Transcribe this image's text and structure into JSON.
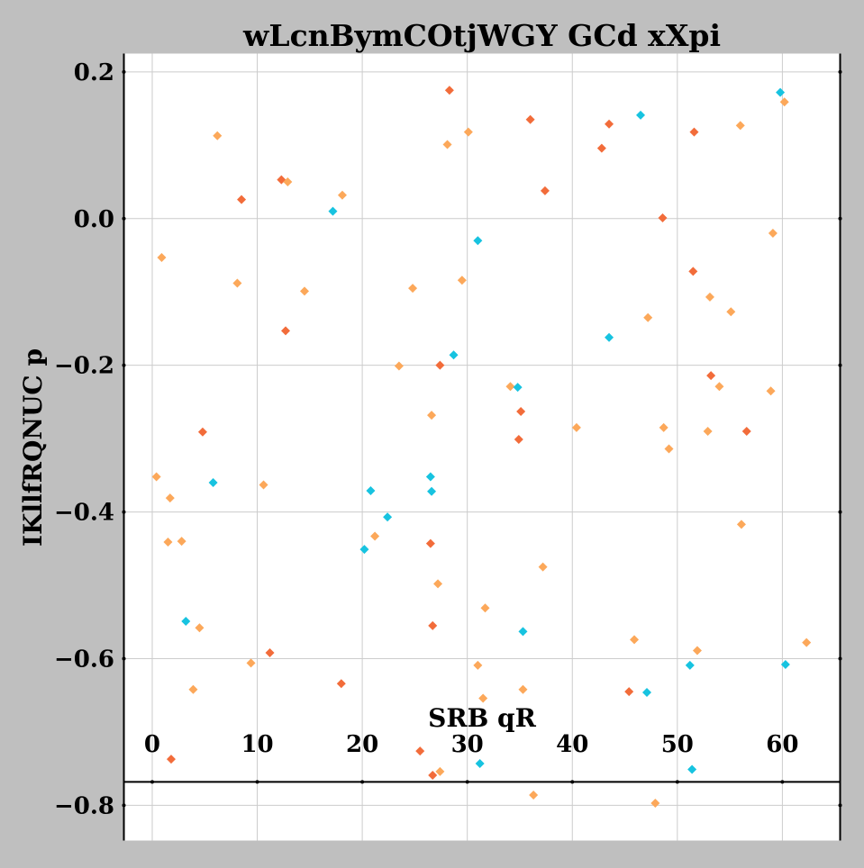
{
  "chart_data": {
    "type": "scatter",
    "title": "wLcnBymCOtjWGY GCd xXpi",
    "xlabel": "SRB qR",
    "ylabel": "IKllfRQNUC p",
    "xlim": [
      -2.7,
      65.5
    ],
    "ylim": [
      -0.848,
      0.225
    ],
    "x_ticks": [
      0,
      10,
      20,
      30,
      40,
      50,
      60
    ],
    "y_ticks": [
      0.2,
      0.0,
      -0.2,
      -0.4,
      -0.6,
      -0.8
    ],
    "x_tick_labels": [
      "0",
      "10",
      "20",
      "30",
      "40",
      "50",
      "60"
    ],
    "y_tick_labels": [
      "0.2",
      "0.0",
      "−0.2",
      "−0.4",
      "−0.6",
      "−0.8"
    ],
    "x_axis_position_y": -0.768,
    "grid": true,
    "legend": "none",
    "marker": "diamond",
    "series": [
      {
        "color": "#f26c3a",
        "points": [
          [
            1.8,
            -0.737
          ],
          [
            4.8,
            -0.291
          ],
          [
            8.5,
            0.026
          ],
          [
            11.2,
            -0.592
          ],
          [
            12.3,
            0.053
          ],
          [
            12.7,
            -0.153
          ],
          [
            18.0,
            -0.634
          ],
          [
            25.5,
            -0.726
          ],
          [
            26.5,
            -0.443
          ],
          [
            26.7,
            -0.555
          ],
          [
            26.7,
            -0.759
          ],
          [
            27.4,
            -0.2
          ],
          [
            28.3,
            0.175
          ],
          [
            34.9,
            -0.301
          ],
          [
            35.1,
            -0.263
          ],
          [
            36.0,
            0.135
          ],
          [
            37.4,
            0.038
          ],
          [
            42.8,
            0.096
          ],
          [
            43.5,
            0.129
          ],
          [
            45.4,
            -0.645
          ],
          [
            48.6,
            0.001
          ],
          [
            51.5,
            -0.072
          ],
          [
            51.6,
            0.118
          ],
          [
            53.2,
            -0.214
          ],
          [
            56.6,
            -0.29
          ]
        ]
      },
      {
        "color": "#fca85a",
        "points": [
          [
            0.4,
            -0.352
          ],
          [
            0.9,
            -0.053
          ],
          [
            1.5,
            -0.441
          ],
          [
            1.7,
            -0.381
          ],
          [
            2.8,
            -0.44
          ],
          [
            3.9,
            -0.642
          ],
          [
            4.5,
            -0.558
          ],
          [
            6.2,
            0.113
          ],
          [
            8.1,
            -0.088
          ],
          [
            9.4,
            -0.606
          ],
          [
            10.6,
            -0.363
          ],
          [
            12.9,
            0.05
          ],
          [
            14.5,
            -0.099
          ],
          [
            18.1,
            0.032
          ],
          [
            21.2,
            -0.433
          ],
          [
            23.5,
            -0.201
          ],
          [
            24.8,
            -0.095
          ],
          [
            26.6,
            -0.268
          ],
          [
            27.2,
            -0.498
          ],
          [
            27.4,
            -0.754
          ],
          [
            28.1,
            0.101
          ],
          [
            29.5,
            -0.084
          ],
          [
            30.1,
            0.118
          ],
          [
            31.0,
            -0.609
          ],
          [
            31.5,
            -0.654
          ],
          [
            31.7,
            -0.531
          ],
          [
            34.1,
            -0.229
          ],
          [
            35.3,
            -0.642
          ],
          [
            36.3,
            -0.786
          ],
          [
            37.2,
            -0.475
          ],
          [
            40.4,
            -0.285
          ],
          [
            45.9,
            -0.574
          ],
          [
            47.2,
            -0.135
          ],
          [
            47.9,
            -0.797
          ],
          [
            48.7,
            -0.285
          ],
          [
            49.2,
            -0.314
          ],
          [
            51.9,
            -0.589
          ],
          [
            52.9,
            -0.29
          ],
          [
            53.1,
            -0.107
          ],
          [
            54.0,
            -0.229
          ],
          [
            55.1,
            -0.127
          ],
          [
            56.0,
            0.127
          ],
          [
            56.1,
            -0.417
          ],
          [
            58.9,
            -0.235
          ],
          [
            59.1,
            -0.02
          ],
          [
            60.2,
            0.159
          ],
          [
            62.3,
            -0.578
          ]
        ]
      },
      {
        "color": "#17c3e0",
        "points": [
          [
            3.2,
            -0.549
          ],
          [
            5.8,
            -0.36
          ],
          [
            17.2,
            0.01
          ],
          [
            20.2,
            -0.451
          ],
          [
            20.8,
            -0.371
          ],
          [
            22.4,
            -0.407
          ],
          [
            26.5,
            -0.352
          ],
          [
            26.6,
            -0.372
          ],
          [
            28.7,
            -0.186
          ],
          [
            31.0,
            -0.03
          ],
          [
            31.2,
            -0.743
          ],
          [
            34.8,
            -0.23
          ],
          [
            35.3,
            -0.563
          ],
          [
            43.5,
            -0.162
          ],
          [
            46.5,
            0.141
          ],
          [
            47.1,
            -0.646
          ],
          [
            51.2,
            -0.609
          ],
          [
            51.4,
            -0.751
          ],
          [
            59.8,
            0.172
          ],
          [
            60.3,
            -0.608
          ]
        ]
      }
    ]
  }
}
